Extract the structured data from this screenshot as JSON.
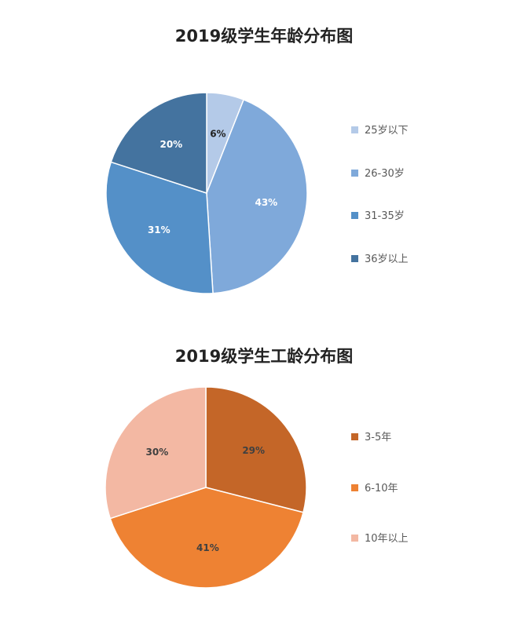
{
  "chart_data": [
    {
      "type": "pie",
      "title": "2019级学生年龄分布图",
      "categories": [
        "25岁以下",
        "26-30岁",
        "31-35岁",
        "36岁以上"
      ],
      "values": [
        6,
        43,
        31,
        20
      ],
      "value_labels": [
        "6%",
        "43%",
        "31%",
        "20%"
      ],
      "colors": [
        "#B4CAE8",
        "#7FA9DA",
        "#5490C8",
        "#44739F"
      ],
      "label_colors": [
        "#222222",
        "#ffffff",
        "#ffffff",
        "#ffffff"
      ],
      "legend_position": "right"
    },
    {
      "type": "pie",
      "title": "2019级学生工龄分布图",
      "categories": [
        "3-5年",
        "6-10年",
        "10年以上"
      ],
      "values": [
        29,
        41,
        30
      ],
      "value_labels": [
        "29%",
        "41%",
        "30%"
      ],
      "colors": [
        "#C46628",
        "#EE8233",
        "#F3B8A3"
      ],
      "label_colors": [
        "#404040",
        "#404040",
        "#404040"
      ],
      "legend_position": "right"
    }
  ]
}
